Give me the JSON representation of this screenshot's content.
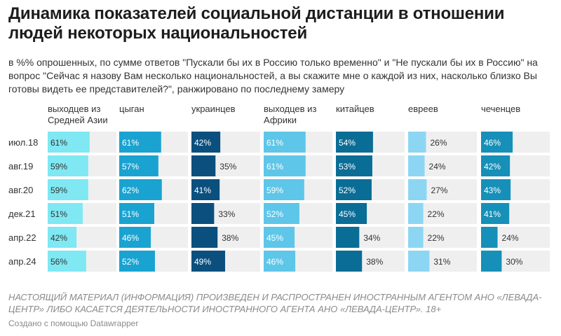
{
  "title": "Динамика показателей социальной дистанции в отношении людей некоторых национальностей",
  "subtitle": "в %% опрошенных, по сумме ответов \"Пускали бы их в Россию только временно\" и \"Не пускали бы их в Россию\" на вопрос \"Сейчас я назову Вам несколько национальностей, а вы скажите мне о каждой из них, насколько близко Вы готовы видеть ее представителей?\", ранжировано по последнему замеру",
  "footer": {
    "note": "НАСТОЯЩИЙ МАТЕРИАЛ (ИНФОРМАЦИЯ) ПРОИЗВЕДЕН И РАСПРОСТРАНЕН ИНОСТРАННЫМ АГЕНТОМ АНО «ЛЕВАДА-ЦЕНТР» ЛИБО КАСАЕТСЯ ДЕЯТЕЛЬНОСТИ ИНОСТРАННОГО АГЕНТА АНО «ЛЕВАДА-ЦЕНТР». 18+",
    "credit": "Создано с помощью Datawrapper"
  },
  "chart_data": {
    "type": "bar",
    "layout": "small-multiples",
    "value_suffix": "%",
    "xlim": [
      0,
      100
    ],
    "categories": [
      "июл.18",
      "авг.19",
      "авг.20",
      "дек.21",
      "апр.22",
      "апр.24"
    ],
    "series": [
      {
        "name": "выходцев из Средней Азии",
        "color": "#7fe8f2",
        "values": [
          61,
          59,
          59,
          51,
          42,
          56
        ]
      },
      {
        "name": "цыган",
        "color": "#1aa3d0",
        "values": [
          61,
          57,
          62,
          51,
          46,
          52
        ]
      },
      {
        "name": "украинцев",
        "color": "#0b4f7e",
        "values": [
          42,
          35,
          41,
          33,
          38,
          49
        ]
      },
      {
        "name": "выходцев из Африки",
        "color": "#5ec6e8",
        "values": [
          61,
          61,
          59,
          52,
          45,
          46
        ]
      },
      {
        "name": "китайцев",
        "color": "#0a6d96",
        "values": [
          54,
          53,
          52,
          45,
          34,
          38
        ]
      },
      {
        "name": "евреев",
        "color": "#8cd6f3",
        "values": [
          26,
          24,
          27,
          22,
          22,
          31
        ]
      },
      {
        "name": "чеченцев",
        "color": "#1690b8",
        "values": [
          46,
          42,
          43,
          41,
          24,
          30
        ]
      }
    ]
  }
}
